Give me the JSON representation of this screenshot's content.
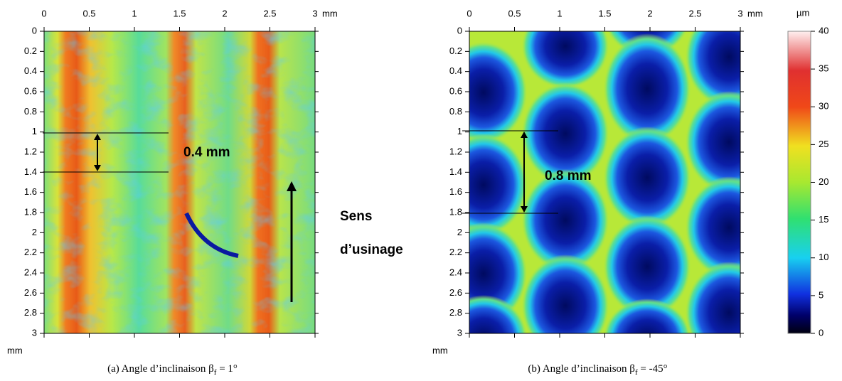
{
  "panels": [
    {
      "x_unit": "mm",
      "y_unit": "mm",
      "xticks": [
        0,
        0.5,
        1,
        1.5,
        2,
        2.5,
        3
      ],
      "yticks": [
        0,
        0.2,
        0.4,
        0.6,
        0.8,
        1,
        1.2,
        1.4,
        1.6,
        1.8,
        2,
        2.2,
        2.4,
        2.6,
        2.8,
        3
      ],
      "measure": "0.4 mm",
      "caption": {
        "text": "(a) Angle d’inclinaison β",
        "subscript": "f",
        "tail": " = 1°"
      }
    },
    {
      "x_unit": "mm",
      "y_unit": "mm",
      "xticks": [
        0,
        0.5,
        1,
        1.5,
        2,
        2.5,
        3
      ],
      "yticks": [
        0,
        0.2,
        0.4,
        0.6,
        0.8,
        1,
        1.2,
        1.4,
        1.6,
        1.8,
        2,
        2.2,
        2.4,
        2.6,
        2.8,
        3
      ],
      "measure": "0.8 mm",
      "caption": {
        "text": "(b) Angle d’inclinaison β",
        "subscript": "f",
        "tail": " = -45°"
      }
    }
  ],
  "direction_label": [
    "Sens",
    "d’usinage"
  ],
  "colorbar": {
    "unit": "µm",
    "ticks": [
      0,
      5,
      10,
      15,
      20,
      25,
      30,
      35,
      40
    ]
  }
}
